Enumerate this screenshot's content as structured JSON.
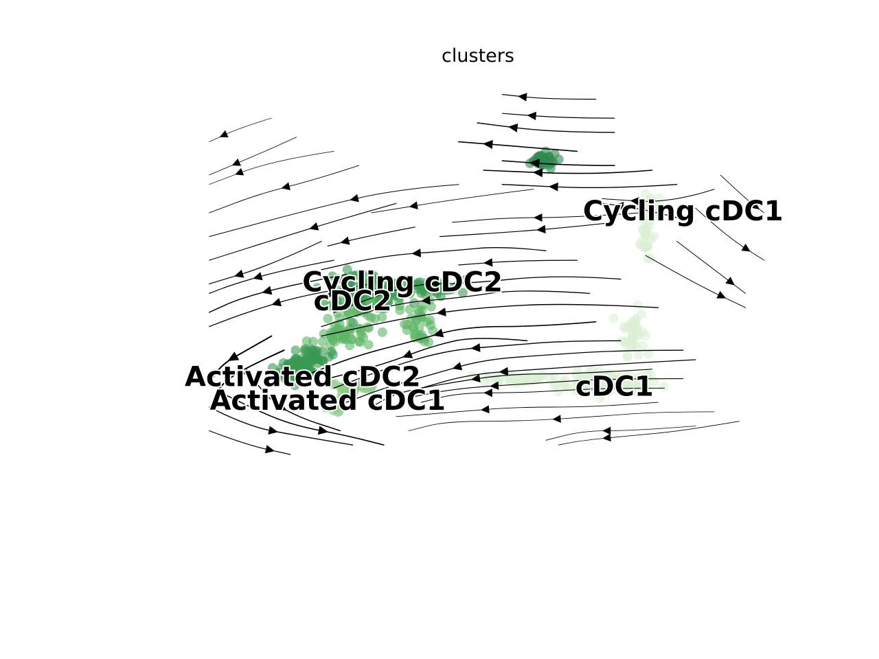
{
  "chart_data": {
    "type": "scatter",
    "title": "clusters",
    "xlabel": "",
    "ylabel": "",
    "grid": false,
    "axes_visible": false,
    "xlim": [
      0,
      100
    ],
    "ylim": [
      0,
      100
    ],
    "point_alpha": 0.6,
    "colors": {
      "Cycling cDC1": "#2e8b4f",
      "Cycling cDC2": "#3e9d56",
      "cDC2": "#5db666",
      "Activated cDC2": "#3a9a52",
      "Activated cDC1": "#8ccc86",
      "cDC1": "#dcf0d5"
    },
    "clusters": [
      {
        "name": "Cycling cDC1",
        "label_pos": [
          84,
          71
        ],
        "groups": [
          {
            "center": [
              61,
              82
            ],
            "spread": [
              2.5,
              1.4
            ],
            "n": 30
          }
        ]
      },
      {
        "name": "Cycling cDC2",
        "label_pos": [
          39,
          56
        ],
        "groups": [
          {
            "center": [
              33,
              55
            ],
            "spread": [
              5.5,
              3
            ],
            "n": 70
          },
          {
            "center": [
              43,
              55
            ],
            "spread": [
              5,
              1.5
            ],
            "n": 40
          }
        ]
      },
      {
        "name": "cDC2",
        "label_pos": [
          31,
          52
        ],
        "groups": [
          {
            "center": [
              33,
              52
            ],
            "spread": [
              5,
              3
            ],
            "n": 110
          },
          {
            "center": [
              30,
              45
            ],
            "spread": [
              4,
              2
            ],
            "n": 50
          },
          {
            "center": [
              42,
              48
            ],
            "spread": [
              2,
              4
            ],
            "n": 35
          }
        ]
      },
      {
        "name": "Activated cDC2",
        "label_pos": [
          23,
          36
        ],
        "groups": [
          {
            "center": [
              22,
              38
            ],
            "spread": [
              2.2,
              2
            ],
            "n": 90
          },
          {
            "center": [
              25,
              41
            ],
            "spread": [
              2,
              1.5
            ],
            "n": 35
          }
        ]
      },
      {
        "name": "Activated cDC1",
        "label_pos": [
          27,
          31
        ],
        "groups": [
          {
            "center": [
              31,
              34
            ],
            "spread": [
              3,
              1
            ],
            "n": 30
          },
          {
            "center": [
              28,
              30
            ],
            "spread": [
              1.5,
              1
            ],
            "n": 12
          }
        ]
      },
      {
        "name": "cDC1",
        "label_pos": [
          73,
          34
        ],
        "groups": [
          {
            "center": [
              72,
              35
            ],
            "spread": [
              7,
              2
            ],
            "n": 110
          },
          {
            "center": [
              57,
              36
            ],
            "spread": [
              5,
              1
            ],
            "n": 45
          },
          {
            "center": [
              76,
              46
            ],
            "spread": [
              1.5,
              4
            ],
            "n": 45
          },
          {
            "center": [
              78,
              67
            ],
            "spread": [
              0.8,
              6
            ],
            "n": 35
          },
          {
            "center": [
              79,
              72
            ],
            "spread": [
              1,
              2
            ],
            "n": 25
          }
        ]
      }
    ],
    "streamlines": [
      {
        "dir": -1,
        "w": 1.2,
        "pts": [
          [
            70,
            95
          ],
          [
            62,
            95
          ],
          [
            55,
            96
          ]
        ]
      },
      {
        "dir": -1,
        "w": 1.2,
        "pts": [
          [
            73,
            91
          ],
          [
            65,
            91
          ],
          [
            55,
            92
          ]
        ]
      },
      {
        "dir": -1,
        "w": 1.4,
        "pts": [
          [
            73,
            88
          ],
          [
            63,
            88
          ],
          [
            51,
            90
          ]
        ]
      },
      {
        "dir": -1,
        "w": 1.6,
        "pts": [
          [
            67,
            84
          ],
          [
            58,
            85
          ],
          [
            48,
            86
          ]
        ]
      },
      {
        "dir": -1,
        "w": 1.6,
        "pts": [
          [
            73,
            81
          ],
          [
            66,
            81
          ],
          [
            55,
            82
          ]
        ]
      },
      {
        "dir": -1,
        "w": 1.6,
        "pts": [
          [
            79,
            80
          ],
          [
            70,
            79
          ],
          [
            52,
            80
          ]
        ]
      },
      {
        "dir": -1,
        "w": 1.4,
        "pts": [
          [
            83,
            77
          ],
          [
            72,
            76
          ],
          [
            55,
            77
          ]
        ]
      },
      {
        "dir": -1,
        "w": 1.0,
        "pts": [
          [
            89,
            76
          ],
          [
            82,
            73
          ],
          [
            71,
            74
          ]
        ]
      },
      {
        "dir": -1,
        "w": 1.2,
        "pts": [
          [
            83,
            70
          ],
          [
            77,
            72
          ],
          [
            71,
            73
          ]
        ]
      },
      {
        "dir": -1,
        "w": 0.9,
        "pts": [
          [
            60,
            76
          ],
          [
            48,
            74
          ],
          [
            34,
            71
          ]
        ]
      },
      {
        "dir": -1,
        "w": 1.0,
        "pts": [
          [
            77,
            71
          ],
          [
            66,
            70
          ],
          [
            56,
            70
          ],
          [
            47,
            69
          ]
        ]
      },
      {
        "dir": -1,
        "w": 1.2,
        "pts": [
          [
            73,
            69
          ],
          [
            66,
            68
          ],
          [
            57,
            67
          ],
          [
            45,
            66
          ]
        ]
      },
      {
        "dir": -1,
        "w": 1.2,
        "pts": [
          [
            41,
            68
          ],
          [
            33,
            66
          ],
          [
            27,
            64
          ]
        ]
      },
      {
        "dir": -1,
        "w": 1.3,
        "pts": [
          [
            62,
            63
          ],
          [
            55,
            64
          ],
          [
            47,
            63
          ],
          [
            36,
            62
          ],
          [
            26,
            59
          ]
        ]
      },
      {
        "dir": -1,
        "w": 1.2,
        "pts": [
          [
            67,
            61
          ],
          [
            58,
            61
          ],
          [
            48,
            60
          ]
        ]
      },
      {
        "dir": -1,
        "w": 1.3,
        "pts": [
          [
            74,
            57
          ],
          [
            64,
            58
          ],
          [
            49,
            56
          ],
          [
            40,
            56
          ],
          [
            28,
            50
          ]
        ]
      },
      {
        "dir": -1,
        "w": 1.3,
        "pts": [
          [
            69,
            54
          ],
          [
            58,
            55
          ],
          [
            48,
            53
          ],
          [
            38,
            52
          ],
          [
            26,
            47
          ]
        ]
      },
      {
        "dir": -1,
        "w": 1.4,
        "pts": [
          [
            80,
            51
          ],
          [
            66,
            52
          ],
          [
            51,
            51
          ],
          [
            40,
            49
          ],
          [
            26,
            45
          ]
        ]
      },
      {
        "dir": -1,
        "w": 1.6,
        "pts": [
          [
            70,
            48
          ],
          [
            61,
            47
          ],
          [
            49,
            47
          ],
          [
            41,
            44
          ],
          [
            32,
            41
          ],
          [
            24,
            37
          ]
        ]
      },
      {
        "dir": -1,
        "w": 1.5,
        "pts": [
          [
            59,
            44
          ],
          [
            51,
            45
          ],
          [
            44,
            43
          ],
          [
            36,
            39
          ],
          [
            27,
            36
          ]
        ]
      },
      {
        "dir": -1,
        "w": 1.4,
        "pts": [
          [
            74,
            44
          ],
          [
            65,
            44
          ],
          [
            56,
            43
          ],
          [
            46,
            42
          ],
          [
            36,
            38
          ],
          [
            28,
            34
          ]
        ]
      },
      {
        "dir": -1,
        "w": 1.3,
        "pts": [
          [
            84,
            42
          ],
          [
            74,
            42
          ],
          [
            62,
            41
          ],
          [
            52,
            40
          ],
          [
            44,
            37
          ],
          [
            36,
            34
          ],
          [
            30,
            31
          ]
        ]
      },
      {
        "dir": -1,
        "w": 1.3,
        "pts": [
          [
            86,
            40
          ],
          [
            72,
            39
          ],
          [
            61,
            38
          ],
          [
            50,
            37
          ],
          [
            42,
            34
          ]
        ]
      },
      {
        "dir": -1,
        "w": 1.2,
        "pts": [
          [
            79,
            38
          ],
          [
            67,
            37
          ],
          [
            56,
            37
          ],
          [
            46,
            35
          ],
          [
            38,
            33
          ],
          [
            34,
            30
          ]
        ]
      },
      {
        "dir": -1,
        "w": 1.1,
        "pts": [
          [
            84,
            36
          ],
          [
            72,
            36
          ],
          [
            60,
            35
          ],
          [
            48,
            34
          ],
          [
            40,
            32
          ]
        ]
      },
      {
        "dir": -1,
        "w": 1.0,
        "pts": [
          [
            81,
            34
          ],
          [
            71,
            34
          ],
          [
            58,
            33
          ],
          [
            48,
            33
          ],
          [
            42,
            31
          ]
        ]
      },
      {
        "dir": -1,
        "w": 0.9,
        "pts": [
          [
            80,
            31
          ],
          [
            70,
            30
          ],
          [
            57,
            30
          ],
          [
            48,
            29
          ],
          [
            38,
            28
          ]
        ]
      },
      {
        "dir": -1,
        "w": 0.8,
        "pts": [
          [
            89,
            29
          ],
          [
            80,
            29
          ],
          [
            70,
            28
          ],
          [
            58,
            27
          ],
          [
            46,
            27
          ],
          [
            40,
            25
          ]
        ]
      },
      {
        "dir": -1,
        "w": 0.8,
        "pts": [
          [
            86,
            26
          ],
          [
            76,
            25
          ],
          [
            68,
            25
          ],
          [
            62,
            23
          ]
        ]
      },
      {
        "dir": -1,
        "w": 0.8,
        "pts": [
          [
            93,
            27
          ],
          [
            84,
            25
          ],
          [
            76,
            24
          ],
          [
            68,
            23
          ],
          [
            64,
            22
          ]
        ]
      },
      {
        "dir": -1,
        "w": 1.2,
        "pts": [
          [
            26,
            65
          ],
          [
            18,
            60
          ],
          [
            8,
            56
          ]
        ]
      },
      {
        "dir": -1,
        "w": 1.1,
        "pts": [
          [
            38,
            73
          ],
          [
            30,
            70
          ],
          [
            20,
            66
          ],
          [
            8,
            61
          ]
        ]
      },
      {
        "dir": -1,
        "w": 1.0,
        "pts": [
          [
            48,
            77
          ],
          [
            38,
            76
          ],
          [
            25,
            72
          ],
          [
            8,
            66
          ]
        ]
      },
      {
        "dir": -1,
        "w": 0.9,
        "pts": [
          [
            32,
            81
          ],
          [
            25,
            78
          ],
          [
            16,
            75
          ],
          [
            8,
            71
          ]
        ]
      },
      {
        "dir": -1,
        "w": 0.8,
        "pts": [
          [
            22,
            87
          ],
          [
            17,
            84
          ],
          [
            8,
            79
          ]
        ]
      },
      {
        "dir": -1,
        "w": 0.7,
        "pts": [
          [
            18,
            91
          ],
          [
            13,
            89
          ],
          [
            8,
            86
          ]
        ]
      },
      {
        "dir": -1,
        "w": 0.7,
        "pts": [
          [
            28,
            84
          ],
          [
            18,
            82
          ],
          [
            8,
            77
          ]
        ]
      },
      {
        "dir": -1,
        "w": 1.3,
        "pts": [
          [
            34,
            56
          ],
          [
            24,
            54
          ],
          [
            14,
            50
          ],
          [
            8,
            47
          ]
        ]
      },
      {
        "dir": -1,
        "w": 1.5,
        "pts": [
          [
            30,
            58
          ],
          [
            22,
            56
          ],
          [
            13,
            53
          ],
          [
            8,
            50
          ]
        ]
      },
      {
        "dir": -1,
        "w": 1.2,
        "pts": [
          [
            28,
            61
          ],
          [
            20,
            59
          ],
          [
            12,
            56
          ],
          [
            8,
            54
          ]
        ]
      },
      {
        "dir": -1,
        "w": 2.0,
        "pts": [
          [
            18,
            45
          ],
          [
            14,
            42
          ],
          [
            10,
            39
          ],
          [
            8,
            35
          ]
        ]
      },
      {
        "dir": -1,
        "w": 2.0,
        "pts": [
          [
            20,
            42
          ],
          [
            15,
            39
          ],
          [
            11,
            36
          ],
          [
            9,
            33
          ]
        ]
      },
      {
        "dir": 1,
        "w": 1.4,
        "pts": [
          [
            8,
            30
          ],
          [
            14,
            26
          ],
          [
            22,
            24
          ],
          [
            31,
            22
          ]
        ]
      },
      {
        "dir": 1,
        "w": 1.6,
        "pts": [
          [
            10,
            33
          ],
          [
            16,
            29
          ],
          [
            22,
            26
          ],
          [
            30,
            24
          ],
          [
            36,
            22
          ]
        ]
      },
      {
        "dir": 1,
        "w": 1.2,
        "pts": [
          [
            8,
            25
          ],
          [
            14,
            22
          ],
          [
            21,
            20
          ]
        ]
      },
      {
        "dir": 1,
        "w": 1.5,
        "pts": [
          [
            14,
            38
          ],
          [
            17,
            32
          ],
          [
            22,
            28
          ],
          [
            29,
            25
          ]
        ]
      },
      {
        "dir": 1,
        "w": 1.0,
        "pts": [
          [
            78,
            62
          ],
          [
            86,
            56
          ],
          [
            94,
            51
          ]
        ]
      },
      {
        "dir": 1,
        "w": 1.0,
        "pts": [
          [
            83,
            65
          ],
          [
            89,
            59
          ],
          [
            94,
            54
          ]
        ]
      },
      {
        "dir": 1,
        "w": 0.9,
        "pts": [
          [
            86,
            72
          ],
          [
            91,
            66
          ],
          [
            97,
            61
          ]
        ]
      },
      {
        "dir": 1,
        "w": 0.9,
        "pts": [
          [
            90,
            79
          ],
          [
            94,
            74
          ],
          [
            97,
            71
          ]
        ]
      }
    ]
  }
}
